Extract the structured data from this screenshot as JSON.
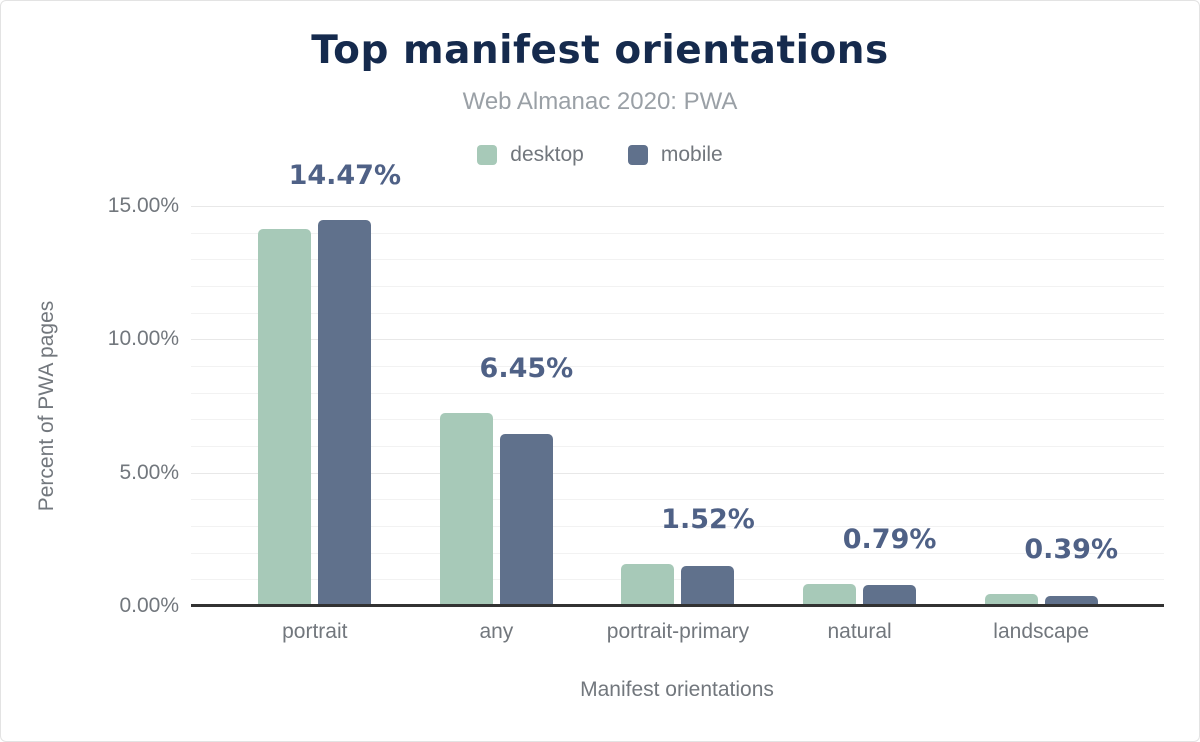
{
  "chart_data": {
    "type": "bar",
    "title": "Top manifest orientations",
    "subtitle": "Web Almanac 2020: PWA",
    "categories": [
      "portrait",
      "any",
      "portrait-primary",
      "natural",
      "landscape"
    ],
    "series": [
      {
        "name": "desktop",
        "color": "#a7c9b8",
        "values": [
          14.14,
          7.25,
          1.57,
          0.82,
          0.47
        ]
      },
      {
        "name": "mobile",
        "color": "#60718c",
        "values": [
          14.47,
          6.45,
          1.52,
          0.79,
          0.39
        ]
      }
    ],
    "bar_labels": [
      "14.47%",
      "6.45%",
      "1.52%",
      "0.79%",
      "0.39%"
    ],
    "bar_labels_series": "mobile",
    "xlabel": "Manifest orientations",
    "ylabel": "Percent of PWA pages",
    "ylim": [
      0,
      15
    ],
    "yticks": [
      {
        "value": 0,
        "label": "0.00%"
      },
      {
        "value": 5,
        "label": "5.00%"
      },
      {
        "value": 10,
        "label": "10.00%"
      },
      {
        "value": 15,
        "label": "15.00%"
      }
    ],
    "grid": "horizontal minor lines every 1%, major every 5%",
    "legend_position": "top-center"
  },
  "style": {
    "title_color": "#152a4d",
    "subtitle_color": "#9aa0a6",
    "axis_text_color": "#72777d",
    "bar_label_color": "#4f6186",
    "grid_minor_color": "#f2f2f2",
    "grid_major_color": "#e8e8e8",
    "baseline_color": "#323232",
    "background_color": "#ffffff"
  }
}
